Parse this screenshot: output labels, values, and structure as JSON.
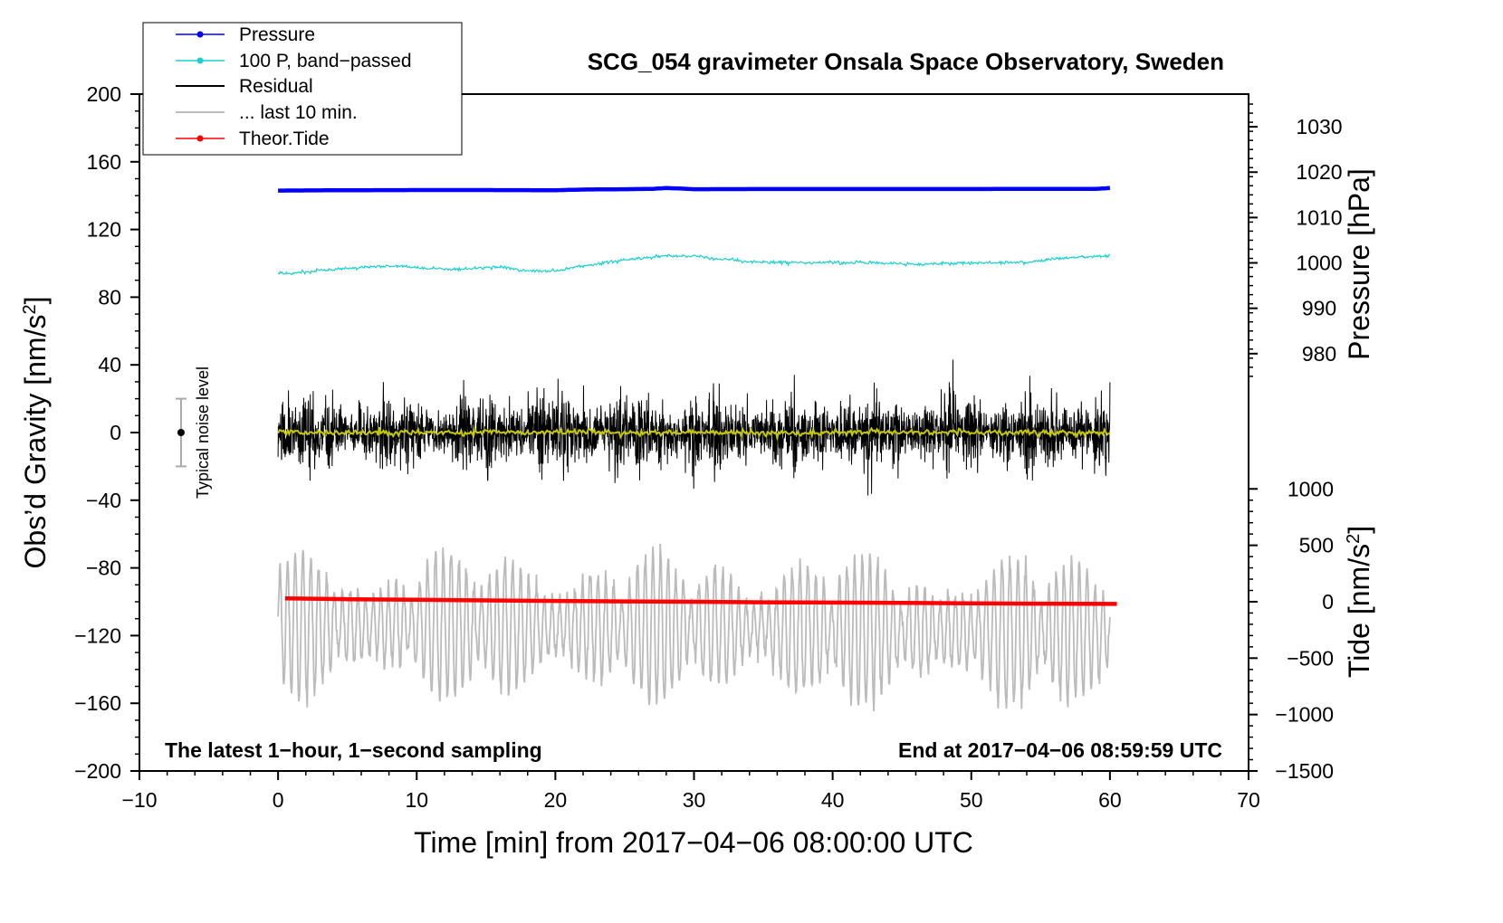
{
  "chart_data": {
    "type": "line",
    "title": "SCG_054 gravimeter Onsala Space Observatory, Sweden",
    "xlabel": "Time [min] from 2017−04−06 08:00:00 UTC",
    "ylabel_left_main": "Obs’d Gravity [nm/s",
    "ylabel_left_sup": "2",
    "ylabel_left_end": "]",
    "ylabel_right_top": "Pressure [hPa]",
    "ylabel_right_bottom_main": "Tide [nm/s",
    "ylabel_right_bottom_sup": "2",
    "ylabel_right_bottom_end": "]",
    "xlim": [
      -10,
      70
    ],
    "ylim": [
      -200,
      200
    ],
    "xticks": [
      -10,
      0,
      10,
      20,
      30,
      40,
      50,
      60,
      70
    ],
    "xtick_labels": [
      "−10",
      "0",
      "10",
      "20",
      "30",
      "40",
      "50",
      "60",
      "70"
    ],
    "yticks": [
      -200,
      -160,
      -120,
      -80,
      -40,
      0,
      40,
      80,
      120,
      160,
      200
    ],
    "ytick_labels": [
      "−200",
      "−160",
      "−120",
      "−80",
      "−40",
      "0",
      "40",
      "80",
      "120",
      "160",
      "200"
    ],
    "pressure_axis": {
      "ticks": [
        980,
        990,
        1000,
        1010,
        1020,
        1030
      ],
      "labels": [
        "980",
        "990",
        "1000",
        "1010",
        "1020",
        "1030"
      ],
      "range_on_left_axis": [
        30,
        200
      ],
      "range": [
        973.8,
        1037.2
      ]
    },
    "tide_axis": {
      "ticks": [
        -1500,
        -1000,
        -500,
        0,
        500,
        1000
      ],
      "labels": [
        "−1500",
        "−1000",
        "−500",
        "0",
        "500",
        "1000"
      ],
      "range_on_left_axis": [
        -200,
        -33.3
      ],
      "range": [
        -1500,
        1000
      ]
    },
    "annotations": {
      "bottom_left": "The latest 1−hour, 1−second sampling",
      "bottom_right": "End at 2017−04−06 08:59:59 UTC",
      "noise_label": "Typical noise level"
    },
    "noise_bar": {
      "x": -7,
      "y": 0,
      "ymin": -20,
      "ymax": 20
    },
    "legend": {
      "position": "top-left",
      "entries": [
        {
          "label": "Pressure",
          "color": "#0000ff",
          "marker": true
        },
        {
          "label": "100 P, band−passed",
          "color": "#1ccfcf",
          "marker": true
        },
        {
          "label": "Residual",
          "color": "#000000",
          "marker": false
        },
        {
          "label": "... last 10 min.",
          "color": "#bbbbbb",
          "marker": false
        },
        {
          "label": "Theor.Tide",
          "color": "#ff0000",
          "marker": true
        }
      ]
    },
    "series": [
      {
        "name": "Pressure",
        "color": "#0000ff",
        "x": [
          0,
          5,
          10,
          15,
          20,
          22,
          25,
          27,
          28,
          29,
          30,
          35,
          40,
          45,
          50,
          55,
          59,
          60
        ],
        "y": [
          143,
          143.2,
          143.3,
          143.3,
          143.2,
          143.6,
          143.8,
          144,
          144.5,
          144.2,
          143.8,
          143.9,
          143.9,
          143.9,
          143.9,
          144,
          144,
          144.5
        ]
      },
      {
        "name": "100 P, band−passed",
        "color": "#1ccfcf",
        "x": [
          0,
          2,
          4,
          6,
          8,
          10,
          12,
          14,
          16,
          18,
          20,
          22,
          24,
          26,
          28,
          30,
          32,
          34,
          36,
          38,
          40,
          42,
          44,
          46,
          48,
          50,
          52,
          54,
          56,
          58,
          60
        ],
        "y": [
          94,
          95,
          96.5,
          97.5,
          98.5,
          97.5,
          96.5,
          97,
          98,
          95.5,
          95.5,
          98.5,
          101,
          103,
          104.5,
          104.5,
          102.5,
          101,
          100.5,
          100.5,
          100.5,
          100.5,
          100,
          99.5,
          100,
          100,
          100.5,
          100.5,
          102.5,
          104,
          104.5
        ]
      },
      {
        "name": "Residual",
        "color": "#000000",
        "x": [
          0,
          60
        ],
        "y": [
          0,
          0
        ],
        "amplitude_range": [
          -55,
          57
        ]
      },
      {
        "name": "Residual smoothed",
        "color": "#c8c800",
        "x": [
          0,
          60
        ],
        "y": [
          0,
          0
        ]
      },
      {
        "name": "... last 10 min.",
        "color": "#bbbbbb",
        "x": [
          0,
          60
        ],
        "y": [
          -113,
          -118
        ],
        "amplitude_range": [
          -173,
          -77
        ]
      },
      {
        "name": "Theor.Tide",
        "color": "#ff0000",
        "x": [
          0.5,
          5,
          10,
          15,
          20,
          25,
          30,
          35,
          40,
          45,
          50,
          55,
          60.5
        ],
        "y": [
          -98,
          -98.5,
          -98.8,
          -99.2,
          -99.5,
          -99.8,
          -100,
          -100.3,
          -100.5,
          -100.7,
          -100.9,
          -101.1,
          -101.3
        ]
      }
    ]
  }
}
